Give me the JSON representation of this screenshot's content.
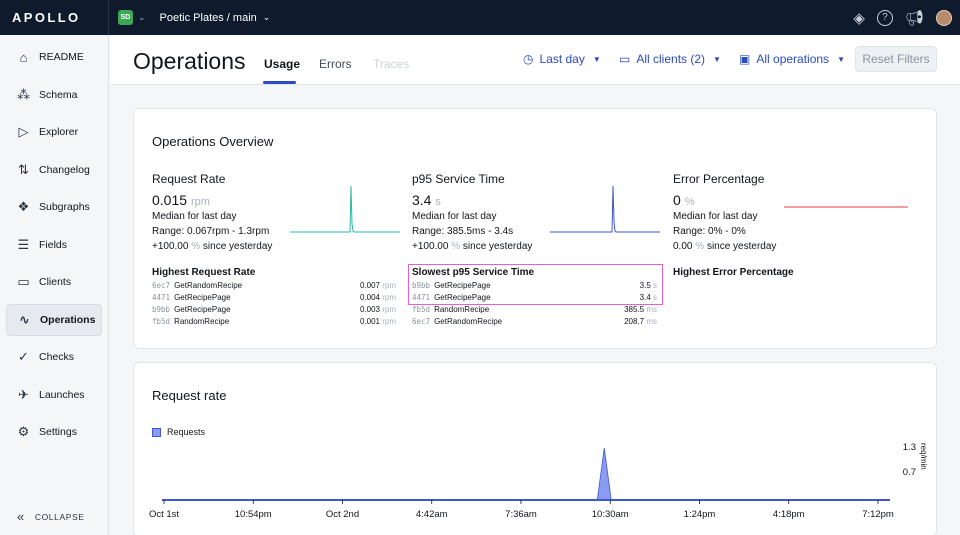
{
  "topbar": {
    "logo_text": "APOLLO",
    "org_badge": "SD",
    "graph_title": "Poetic Plates / main"
  },
  "sidebar": {
    "items": [
      {
        "label": "README",
        "icon": "home-icon",
        "glyph": "⌂"
      },
      {
        "label": "Schema",
        "icon": "schema-icon",
        "glyph": "⁂"
      },
      {
        "label": "Explorer",
        "icon": "explorer-icon",
        "glyph": "▷"
      },
      {
        "label": "Changelog",
        "icon": "changelog-icon",
        "glyph": "⇅"
      },
      {
        "label": "Subgraphs",
        "icon": "subgraphs-icon",
        "glyph": "❖"
      },
      {
        "label": "Fields",
        "icon": "fields-icon",
        "glyph": "☰"
      },
      {
        "label": "Clients",
        "icon": "clients-icon",
        "glyph": "▭"
      },
      {
        "label": "Operations",
        "icon": "operations-icon",
        "glyph": "∿"
      },
      {
        "label": "Checks",
        "icon": "checks-icon",
        "glyph": "✓"
      },
      {
        "label": "Launches",
        "icon": "launches-icon",
        "glyph": "✈"
      },
      {
        "label": "Settings",
        "icon": "settings-icon",
        "glyph": "⚙"
      }
    ],
    "collapse_label": "COLLAPSE"
  },
  "header": {
    "title": "Operations",
    "tabs": {
      "usage": "Usage",
      "errors": "Errors",
      "traces": "Traces"
    },
    "filters": {
      "time": "Last day",
      "clients": "All clients (2)",
      "operations": "All operations"
    },
    "reset_label": "Reset Filters"
  },
  "overview": {
    "title": "Operations Overview",
    "request_rate": {
      "name": "Request Rate",
      "value": "0.015",
      "unit": "rpm",
      "median": "Median for last day",
      "range": "Range: 0.067rpm - 1.3rpm",
      "change": "+100.00",
      "since": "since yesterday"
    },
    "p95": {
      "name": "p95 Service Time",
      "value": "3.4",
      "unit": "s",
      "median": "Median for last day",
      "range": "Range: 385.5ms - 3.4s",
      "change": "+100.00",
      "since": "since yesterday"
    },
    "error_pct": {
      "name": "Error Percentage",
      "value": "0",
      "unit": "%",
      "median": "Median for last day",
      "range": "Range: 0% - 0%",
      "change": "0.00",
      "since": "since yesterday"
    },
    "pct_sign": "%",
    "highest_rate": {
      "title": "Highest Request Rate",
      "rows": [
        {
          "id": "6ec7",
          "name": "GetRandomRecipe",
          "value": "0.007",
          "unit": "rpm"
        },
        {
          "id": "4471",
          "name": "GetRecipePage",
          "value": "0.004",
          "unit": "rpm"
        },
        {
          "id": "b9bb",
          "name": "GetRecipePage",
          "value": "0.003",
          "unit": "rpm"
        },
        {
          "id": "fb5d",
          "name": "RandomRecipe",
          "value": "0.001",
          "unit": "rpm"
        }
      ]
    },
    "slowest": {
      "title": "Slowest p95 Service Time",
      "rows": [
        {
          "id": "b9bb",
          "name": "GetRecipePage",
          "value": "3.5",
          "unit": "s"
        },
        {
          "id": "4471",
          "name": "GetRecipePage",
          "value": "3.4",
          "unit": "s"
        },
        {
          "id": "fb5d",
          "name": "RandomRecipe",
          "value": "385.5",
          "unit": "ms"
        },
        {
          "id": "6ec7",
          "name": "GetRandomRecipe",
          "value": "208.7",
          "unit": "ms"
        }
      ]
    },
    "highest_error": {
      "title": "Highest Error Percentage"
    }
  },
  "request_chart": {
    "title": "Request rate",
    "chart_data": {
      "type": "area",
      "title": "Request rate",
      "series": [
        {
          "name": "Requests",
          "color": "#8b9cf0"
        }
      ],
      "x_ticks": [
        "Oct 1st",
        "10:54pm",
        "Oct 2nd",
        "4:42am",
        "7:36am",
        "10:30am",
        "1:24pm",
        "4:18pm",
        "7:12pm"
      ],
      "y_ticks": [
        "1.3",
        "0.7"
      ],
      "ylabel": "req/min",
      "peak_near": "10:30am"
    }
  },
  "colors": {
    "accent": "#2a4bc2",
    "spark_rate": "#2bb7a3",
    "spark_p95": "#3f56d0",
    "spark_err": "#e0414a",
    "highlight": "#e45fd6"
  }
}
